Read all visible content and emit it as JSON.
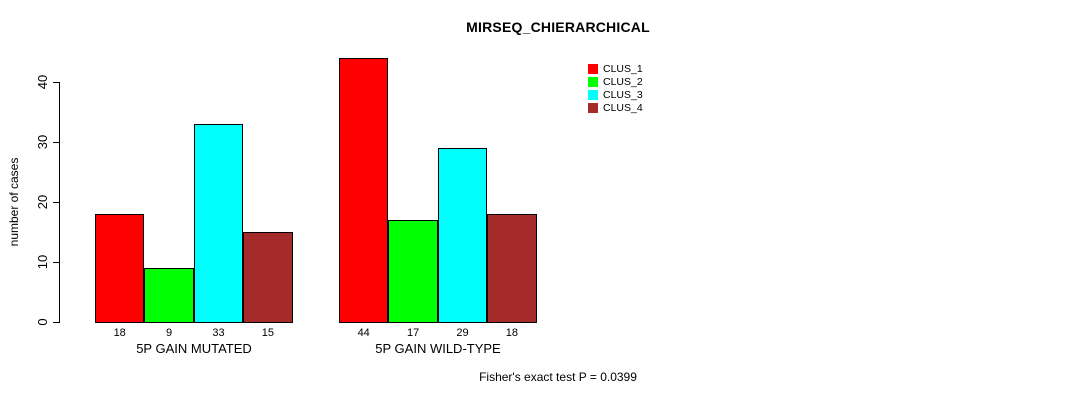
{
  "title": "MIRSEQ_CHIERARCHICAL",
  "footer_text": "Fisher's exact test P = 0.0399",
  "colors": {
    "background": "#ffffff",
    "axis": "#000000",
    "bar_border": "#000000",
    "clus_1": "#ff0000",
    "clus_2": "#00ff00",
    "clus_3": "#00ffff",
    "clus_4": "#a52a2a"
  },
  "legend": {
    "position": "top-right",
    "items": [
      {
        "label": "CLUS_1",
        "color": "#ff0000"
      },
      {
        "label": "CLUS_2",
        "color": "#00ff00"
      },
      {
        "label": "CLUS_3",
        "color": "#00ffff"
      },
      {
        "label": "CLUS_4",
        "color": "#a52a2a"
      }
    ]
  },
  "chart_data": {
    "type": "bar",
    "title": "MIRSEQ_CHIERARCHICAL",
    "xlabel": "",
    "ylabel": "number of cases",
    "categories": [
      "5P GAIN MUTATED",
      "5P GAIN WILD-TYPE"
    ],
    "series": [
      {
        "name": "CLUS_1",
        "color": "#ff0000",
        "values": [
          18,
          44
        ]
      },
      {
        "name": "CLUS_2",
        "color": "#00ff00",
        "values": [
          9,
          17
        ]
      },
      {
        "name": "CLUS_3",
        "color": "#00ffff",
        "values": [
          33,
          29
        ]
      },
      {
        "name": "CLUS_4",
        "color": "#a52a2a",
        "values": [
          15,
          18
        ]
      }
    ],
    "bar_value_labels": [
      [
        18,
        9,
        33,
        15
      ],
      [
        44,
        17,
        29,
        18
      ]
    ],
    "yticks": [
      0,
      10,
      20,
      30,
      40
    ],
    "ylim": [
      0,
      44
    ],
    "grid": false,
    "legend_position": "top-right",
    "annotation": "Fisher's exact test P = 0.0399"
  }
}
